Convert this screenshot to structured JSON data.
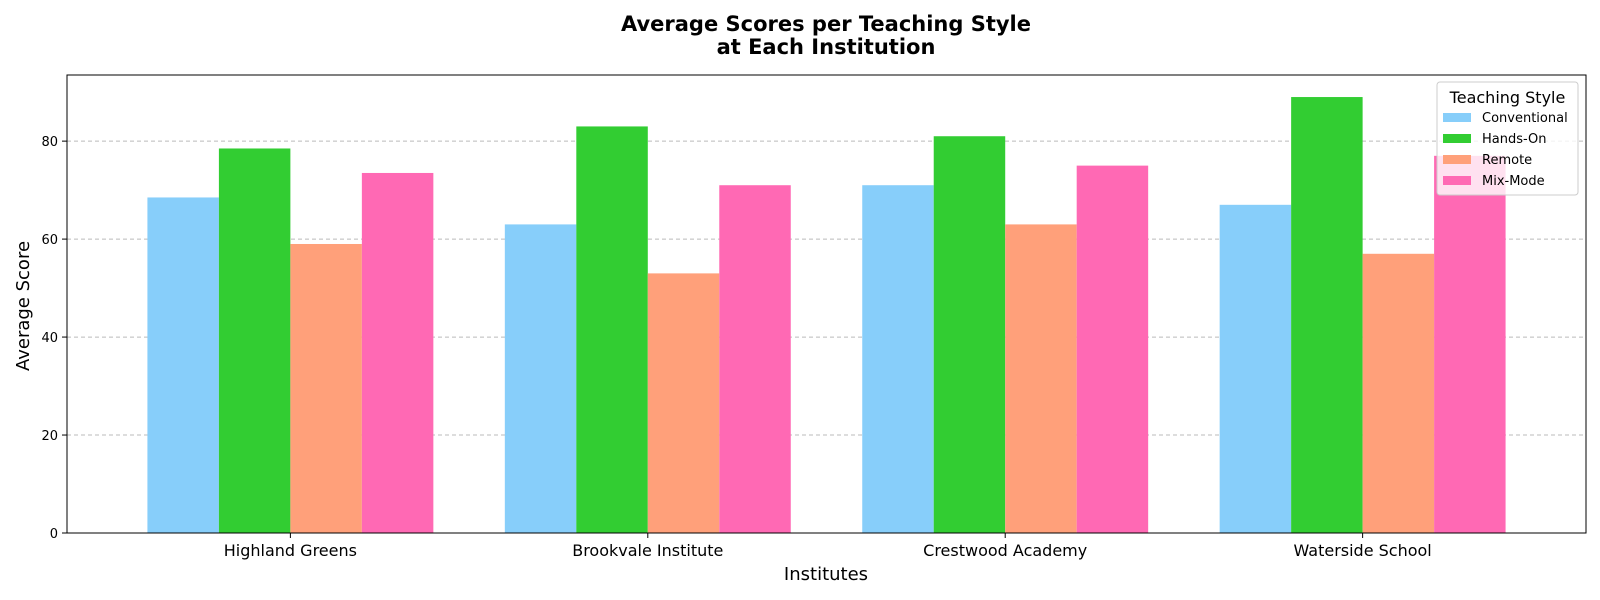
{
  "chart_data": {
    "type": "bar",
    "title": "Average Scores per Teaching Style",
    "subtitle": "at Each Institution",
    "xlabel": "Institutes",
    "ylabel": "Average Score",
    "categories": [
      "Highland Greens",
      "Brookvale Institute",
      "Crestwood Academy",
      "Waterside School"
    ],
    "series": [
      {
        "name": "Conventional",
        "values": [
          68.5,
          63,
          71,
          67
        ],
        "color": "#87CEFA"
      },
      {
        "name": "Hands-On",
        "values": [
          78.5,
          83,
          81,
          89
        ],
        "color": "#32CD32"
      },
      {
        "name": "Remote",
        "values": [
          59,
          53,
          63,
          57
        ],
        "color": "#FFA07A"
      },
      {
        "name": "Mix-Mode",
        "values": [
          73.5,
          71,
          75,
          77
        ],
        "color": "#FF69B4"
      }
    ],
    "ylim": [
      0,
      93.5
    ],
    "yticks": [
      0,
      20,
      40,
      60,
      80
    ],
    "grid": "y-dashed",
    "legend": {
      "title": "Teaching Style",
      "placement": "top-right"
    }
  }
}
